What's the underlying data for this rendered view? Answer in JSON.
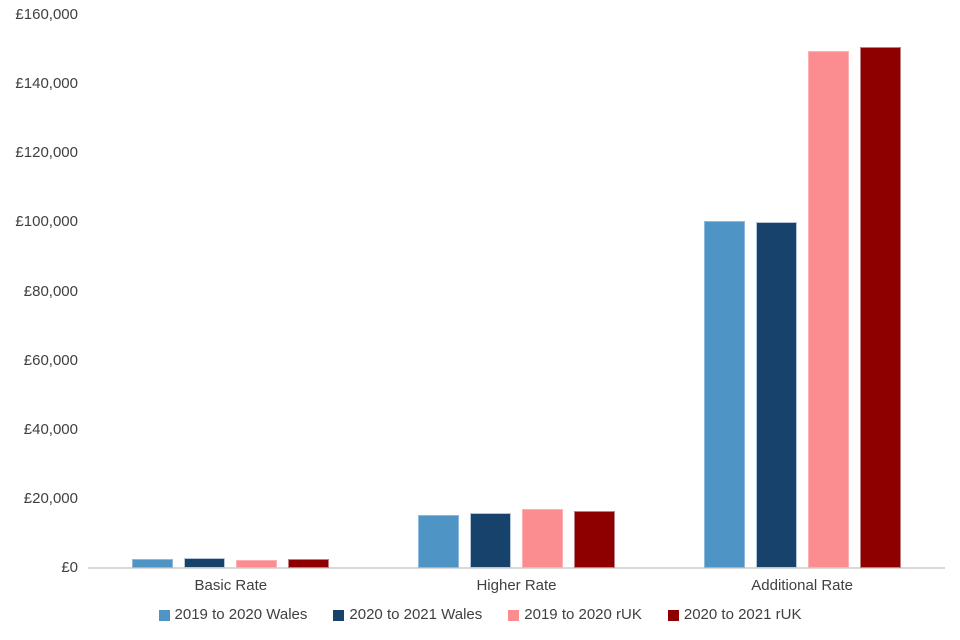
{
  "chart_data": {
    "type": "bar",
    "title": "",
    "categories": [
      "Basic Rate",
      "Higher Rate",
      "Additional Rate"
    ],
    "series": [
      {
        "name": "2019 to 2020 Wales",
        "color": "#4E95C6",
        "border_color": "#8FB9DC",
        "values": [
          2500,
          15300,
          100500
        ]
      },
      {
        "name": "2020 to 2021 Wales",
        "color": "#16426B",
        "border_color": "#B4C6D8",
        "values": [
          2800,
          15800,
          100000
        ]
      },
      {
        "name": "2019 to 2020 rUK",
        "color": "#FB8C8F",
        "border_color": "#FDAFB1",
        "values": [
          2400,
          17100,
          149700
        ]
      },
      {
        "name": "2020 to 2021 rUK",
        "color": "#8E0000",
        "border_color": "#BE7F82",
        "values": [
          2600,
          16500,
          150600
        ]
      }
    ],
    "y_axis": {
      "min": 0,
      "max": 160000,
      "tick_interval": 20000,
      "tick_values": [
        0,
        20000,
        40000,
        60000,
        80000,
        100000,
        120000,
        140000,
        160000
      ],
      "tick_labels": [
        "£0",
        "£20,000",
        "£40,000",
        "£60,000",
        "£80,000",
        "£100,000",
        "£120,000",
        "£140,000",
        "£160,000"
      ]
    },
    "x_axis": {
      "label": ""
    },
    "legend_position": "bottom",
    "grid": false,
    "background_color": "#FFFFFF",
    "axis_line_color": "#D9D9D9",
    "text_color": "#404040"
  }
}
